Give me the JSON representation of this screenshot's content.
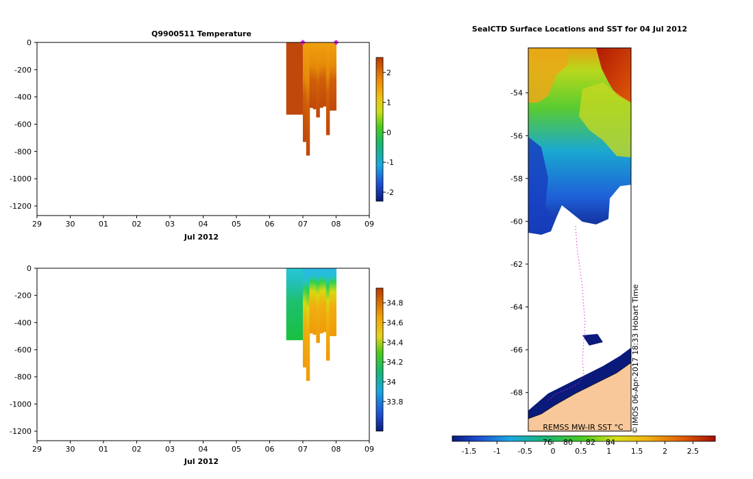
{
  "chart_data": [
    {
      "type": "heatmap",
      "title": "Q9900511  Temperature",
      "xlabel": "Jul 2012",
      "ylabel": "",
      "x_ticks": [
        "29",
        "30",
        "01",
        "02",
        "03",
        "04",
        "05",
        "06",
        "07",
        "08",
        "09"
      ],
      "y_ticks": [
        0,
        -200,
        -400,
        -600,
        -800,
        -1000,
        -1200
      ],
      "ylim": [
        -1270,
        0
      ],
      "colorbar": {
        "range": [
          -2.3,
          2.5
        ],
        "ticks": [
          -2,
          -1,
          0,
          1,
          2
        ]
      },
      "profiles": [
        {
          "x": 7.5,
          "depth": -530,
          "value": 2.2
        },
        {
          "x": 7.6,
          "depth": -530,
          "value": 2.2
        },
        {
          "x": 7.7,
          "depth": -530,
          "value": 2.2
        },
        {
          "x": 7.8,
          "depth": -530,
          "value": 2.2
        },
        {
          "x": 7.9,
          "depth": -530,
          "value": 2.2
        },
        {
          "x": 8.0,
          "depth": -730,
          "value": 2.2
        },
        {
          "x": 8.1,
          "depth": -830,
          "value": 2.2
        },
        {
          "x": 8.2,
          "depth": -480,
          "value": 2.2
        },
        {
          "x": 8.3,
          "depth": -490,
          "value": 2.2
        },
        {
          "x": 8.4,
          "depth": -550,
          "value": 2.2
        },
        {
          "x": 8.5,
          "depth": -480,
          "value": 2.2
        },
        {
          "x": 8.6,
          "depth": -470,
          "value": 2.2
        },
        {
          "x": 8.7,
          "depth": -680,
          "value": 2.2
        },
        {
          "x": 8.8,
          "depth": -500,
          "value": 2.2
        },
        {
          "x": 8.9,
          "depth": -500,
          "value": 2.2
        }
      ],
      "surface_markers_x": [
        8.0,
        9.0
      ]
    },
    {
      "type": "heatmap",
      "title": "",
      "xlabel": "Jul 2012",
      "ylabel": "",
      "x_ticks": [
        "29",
        "30",
        "01",
        "02",
        "03",
        "04",
        "05",
        "06",
        "07",
        "08",
        "09"
      ],
      "y_ticks": [
        0,
        -200,
        -400,
        -600,
        -800,
        -1000,
        -1200
      ],
      "ylim": [
        -1270,
        0
      ],
      "colorbar": {
        "range": [
          33.5,
          34.95
        ],
        "ticks": [
          33.8,
          34,
          34.2,
          34.4,
          34.6,
          34.8
        ]
      },
      "profiles": [
        {
          "x": 7.5,
          "depth": -530,
          "value": 34.3
        },
        {
          "x": 7.6,
          "depth": -530,
          "value": 34.3
        },
        {
          "x": 7.7,
          "depth": -530,
          "value": 34.3
        },
        {
          "x": 7.8,
          "depth": -530,
          "value": 34.3
        },
        {
          "x": 7.9,
          "depth": -530,
          "value": 34.3
        },
        {
          "x": 8.0,
          "depth": -730,
          "value": 34.6
        },
        {
          "x": 8.1,
          "depth": -830,
          "value": 34.6
        },
        {
          "x": 8.2,
          "depth": -480,
          "value": 34.6
        },
        {
          "x": 8.3,
          "depth": -490,
          "value": 34.6
        },
        {
          "x": 8.4,
          "depth": -550,
          "value": 34.6
        },
        {
          "x": 8.5,
          "depth": -480,
          "value": 34.6
        },
        {
          "x": 8.6,
          "depth": -470,
          "value": 34.6
        },
        {
          "x": 8.7,
          "depth": -680,
          "value": 34.6
        },
        {
          "x": 8.8,
          "depth": -500,
          "value": 34.6
        },
        {
          "x": 8.9,
          "depth": -500,
          "value": 34.6
        }
      ]
    },
    {
      "type": "heatmap",
      "title": "SealCTD Surface Locations and SST for 04 Jul 2012",
      "xlabel": "",
      "ylabel": "",
      "y_ticks": [
        -54,
        -56,
        -58,
        -60,
        -62,
        -64,
        -66,
        -68
      ],
      "ylim": [
        -69.8,
        -51.9
      ],
      "colorbar": {
        "range": [
          -1.8,
          2.9
        ],
        "ticks": [
          -1.5,
          -1,
          -0.5,
          0,
          0.5,
          1,
          1.5,
          2,
          2.5
        ]
      },
      "colorbar_extra_labels": [
        "76",
        "80",
        "82",
        "84"
      ],
      "annotations": [
        "REMSS MW-IR SST °C",
        "IMOS 06-Apr-2017 18:33 Hobart Time",
        "©"
      ]
    }
  ]
}
